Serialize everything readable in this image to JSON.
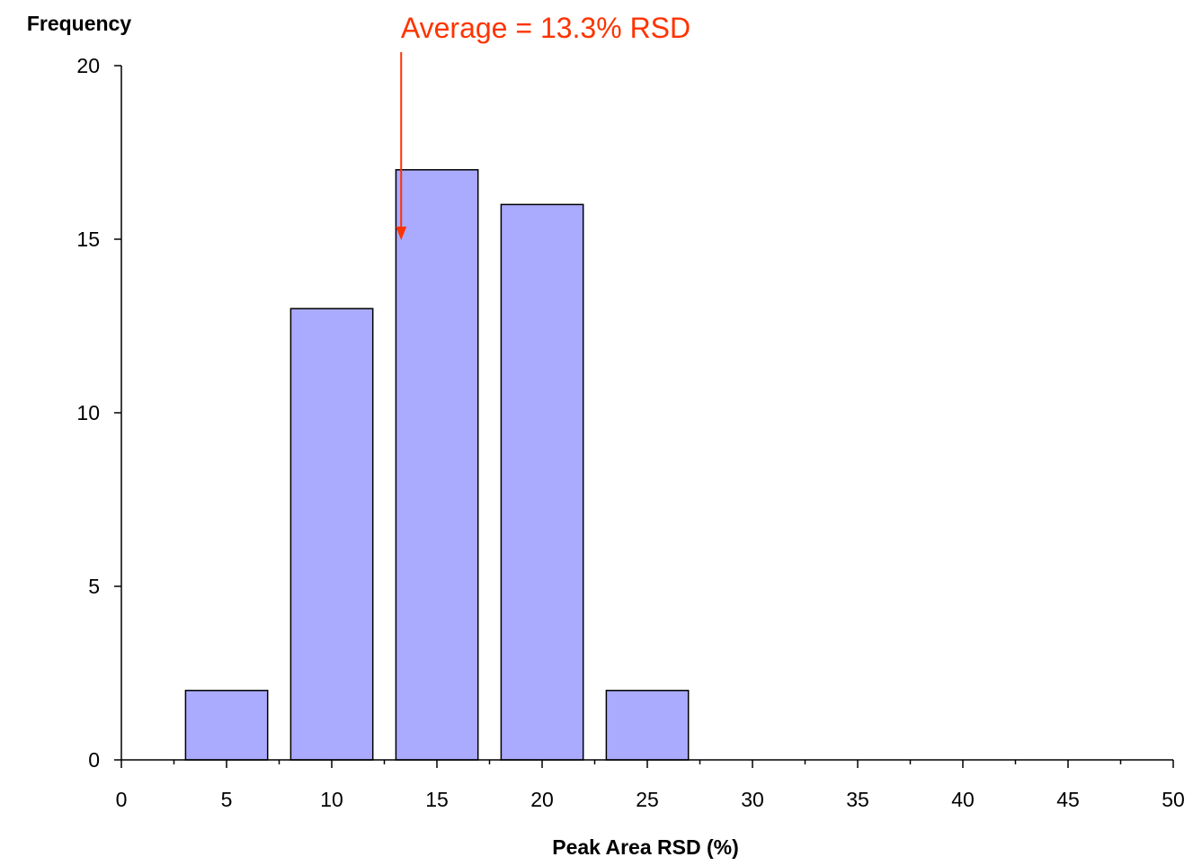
{
  "chart_data": {
    "type": "bar",
    "title": "",
    "xlabel": "Peak Area RSD (%)",
    "ylabel": "Frequency",
    "x_ticks": [
      0,
      5,
      10,
      15,
      20,
      25,
      30,
      35,
      40,
      45,
      50
    ],
    "x_tick_labels": [
      "0",
      "5",
      "10",
      "15",
      "20",
      "25",
      "30",
      "35",
      "40",
      "45",
      "50"
    ],
    "y_ticks": [
      0,
      5,
      10,
      15,
      20
    ],
    "y_tick_labels": [
      "0",
      "5",
      "10",
      "15",
      "20"
    ],
    "xlim": [
      0,
      50
    ],
    "ylim": [
      0,
      20
    ],
    "bins": [
      5,
      10,
      15,
      20,
      25
    ],
    "values": [
      2,
      13,
      17,
      16,
      2
    ],
    "bar_color": "#aaaaff",
    "bar_edge_color": "#000000",
    "grid": false,
    "legend": "none",
    "annotation": {
      "text": "Average = 13.3% RSD",
      "x": 13.3,
      "color": "#ff3300"
    }
  }
}
